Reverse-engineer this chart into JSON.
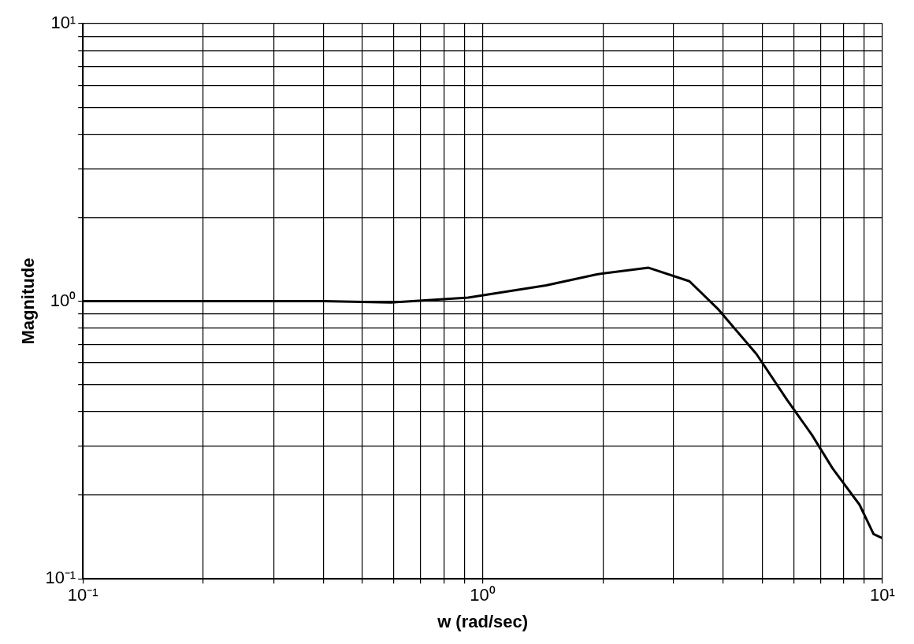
{
  "chart_data": {
    "type": "line",
    "xlabel": "w (rad/sec)",
    "ylabel": "Magnitude",
    "log": "xy",
    "grid": true,
    "legend": false,
    "marker": "none",
    "line_style": "solid",
    "xlim": [
      0.1,
      10
    ],
    "ylim": [
      0.1,
      10
    ],
    "xticks": [
      {
        "value": 0.1,
        "label": "10⁻¹"
      },
      {
        "value": 0.2,
        "label": null
      },
      {
        "value": 0.3,
        "label": null
      },
      {
        "value": 0.4,
        "label": null
      },
      {
        "value": 0.5,
        "label": null
      },
      {
        "value": 0.6,
        "label": null
      },
      {
        "value": 0.7,
        "label": null
      },
      {
        "value": 0.8,
        "label": null
      },
      {
        "value": 0.9,
        "label": null
      },
      {
        "value": 1,
        "label": "10⁰"
      },
      {
        "value": 2,
        "label": null
      },
      {
        "value": 3,
        "label": null
      },
      {
        "value": 4,
        "label": null
      },
      {
        "value": 5,
        "label": null
      },
      {
        "value": 6,
        "label": null
      },
      {
        "value": 7,
        "label": null
      },
      {
        "value": 8,
        "label": null
      },
      {
        "value": 9,
        "label": null
      },
      {
        "value": 10,
        "label": "10¹"
      }
    ],
    "yticks": [
      {
        "value": 0.1,
        "label": "10⁻¹"
      },
      {
        "value": 0.2,
        "label": null
      },
      {
        "value": 0.3,
        "label": null
      },
      {
        "value": 0.4,
        "label": null
      },
      {
        "value": 0.5,
        "label": null
      },
      {
        "value": 0.6,
        "label": null
      },
      {
        "value": 0.7,
        "label": null
      },
      {
        "value": 0.8,
        "label": null
      },
      {
        "value": 0.9,
        "label": null
      },
      {
        "value": 1,
        "label": "10⁰"
      },
      {
        "value": 2,
        "label": null
      },
      {
        "value": 3,
        "label": null
      },
      {
        "value": 4,
        "label": null
      },
      {
        "value": 5,
        "label": null
      },
      {
        "value": 6,
        "label": null
      },
      {
        "value": 7,
        "label": null
      },
      {
        "value": 8,
        "label": null
      },
      {
        "value": 9,
        "label": null
      },
      {
        "value": 10,
        "label": "10¹"
      }
    ],
    "x": [
      0.1,
      0.2,
      0.4,
      0.59,
      0.92,
      1.44,
      1.93,
      2.6,
      3.29,
      3.87,
      4.84,
      5.78,
      6.66,
      7.5,
      8.76,
      9.5,
      10
    ],
    "series": [
      {
        "color": "#000000",
        "values": [
          1.0,
          1.0,
          1.0,
          0.99,
          1.03,
          1.14,
          1.25,
          1.32,
          1.18,
          0.94,
          0.645,
          0.44,
          0.33,
          0.25,
          0.185,
          0.145,
          0.14
        ]
      }
    ]
  }
}
